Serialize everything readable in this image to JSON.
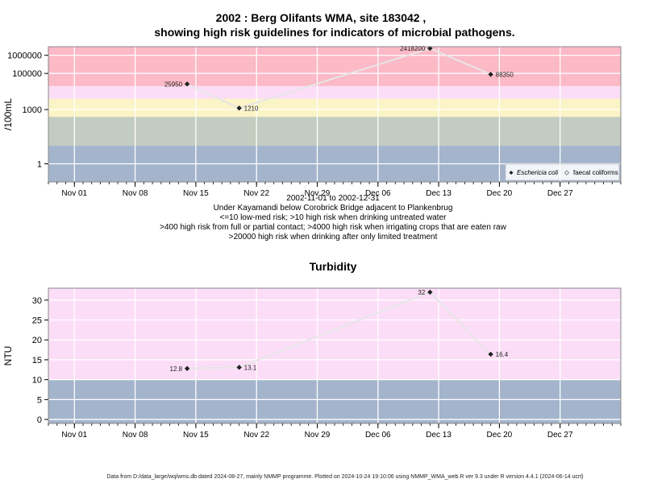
{
  "title_line1": "2002 : Berg Olifants WMA, site 183042 ,",
  "title_line2": "showing high risk guidelines for indicators of microbial pathogens.",
  "subtitle_lines": [
    "2002-11-01 to 2002-12-31",
    "Under Kayamandi below Corobrick Bridge adjacent to Plankenbrug",
    "<=10 low-med risk; >10 high risk when drinking untreated water",
    ">400 high risk from full or partial contact; >4000 high risk when irrigating crops that are eaten raw",
    ">20000 high risk when drinking after only limited treatment"
  ],
  "footer": "Data from D:/data_large/wq/wms.db dated 2024-08-27, mainly NMMP programme. Plotted on 2024-10-24 19:10:06 using NMMP_WMA_web.R ver 9.3 under R version 4.4.1 (2024-06-14 ucrt)",
  "chart_data": [
    {
      "type": "line",
      "title": "",
      "ylabel": "/100mL",
      "y_scale": "log10",
      "ylim": [
        0.1,
        3000000
      ],
      "yticks": [
        1,
        1000,
        100000,
        1000000
      ],
      "ytick_labels": [
        "1",
        "1000",
        "100000",
        "1000000"
      ],
      "xlim": [
        "2002-10-29",
        "2003-01-03"
      ],
      "xticks": [
        "2002-11-01",
        "2002-11-08",
        "2002-11-15",
        "2002-11-22",
        "2002-11-29",
        "2002-12-06",
        "2002-12-13",
        "2002-12-20",
        "2002-12-27"
      ],
      "xtick_labels": [
        "Nov 01",
        "Nov 08",
        "Nov 15",
        "Nov 22",
        "Nov 29",
        "Dec 06",
        "Dec 13",
        "Dec 20",
        "Dec 27"
      ],
      "grid": true,
      "bands": [
        {
          "from": 0.1,
          "to": 10,
          "color": "#a3b4cc"
        },
        {
          "from": 10,
          "to": 400,
          "color": "#c3ccc0"
        },
        {
          "from": 400,
          "to": 4000,
          "color": "#fbf4c6"
        },
        {
          "from": 4000,
          "to": 20000,
          "color": "#fcddf7"
        },
        {
          "from": 20000,
          "to": 3000000,
          "color": "#fcb9c6"
        }
      ],
      "series": [
        {
          "name": "Eschericia coli",
          "x": [
            "2002-11-14",
            "2002-11-20",
            "2002-12-12",
            "2002-12-19"
          ],
          "y": [
            25950,
            1210,
            2418200,
            88350
          ],
          "labels": [
            "25950",
            "1210",
            "2418200",
            "88350"
          ],
          "label_side": [
            "left",
            "right",
            "left",
            "right"
          ]
        }
      ],
      "legend": {
        "placement": "bottom-right",
        "entries": [
          "Eschericia coli",
          "faecal coliforms"
        ]
      }
    },
    {
      "type": "line",
      "title": "Turbidity",
      "ylabel": "NTU",
      "ylim": [
        -1,
        33
      ],
      "yticks": [
        0,
        5,
        10,
        15,
        20,
        25,
        30
      ],
      "ytick_labels": [
        "0",
        "5",
        "10",
        "15",
        "20",
        "25",
        "30"
      ],
      "xlim": [
        "2002-10-29",
        "2003-01-03"
      ],
      "xticks": [
        "2002-11-01",
        "2002-11-08",
        "2002-11-15",
        "2002-11-22",
        "2002-11-29",
        "2002-12-06",
        "2002-12-13",
        "2002-12-20",
        "2002-12-27"
      ],
      "xtick_labels": [
        "Nov 01",
        "Nov 08",
        "Nov 15",
        "Nov 22",
        "Nov 29",
        "Dec 06",
        "Dec 13",
        "Dec 20",
        "Dec 27"
      ],
      "grid": true,
      "bands": [
        {
          "from": -1,
          "to": 10,
          "color": "#a3b4cc"
        },
        {
          "from": 10,
          "to": 33,
          "color": "#fcddf7"
        }
      ],
      "series": [
        {
          "name": "",
          "x": [
            "2002-11-14",
            "2002-11-20",
            "2002-12-12",
            "2002-12-19"
          ],
          "y": [
            12.8,
            13.1,
            32,
            16.4
          ],
          "labels": [
            "12.8",
            "13.1",
            "32",
            "16.4"
          ],
          "label_side": [
            "left",
            "right",
            "left",
            "right"
          ]
        }
      ]
    }
  ]
}
